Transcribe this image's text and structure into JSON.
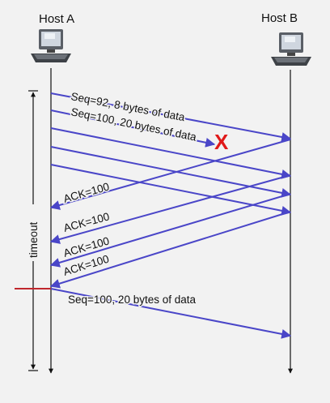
{
  "hosts": {
    "a": {
      "label": "Host A"
    },
    "b": {
      "label": "Host B"
    }
  },
  "timer": {
    "label": "timeout"
  },
  "messages": {
    "seq92": "Seq=92, 8 bytes of data",
    "seq100_first": "Seq=100, 20 bytes of data",
    "ack_1": "ACK=100",
    "ack_2": "ACK=100",
    "ack_3": "ACK=100",
    "ack_4": "ACK=100",
    "seq100_retx": "Seq=100, 20 bytes of data"
  },
  "loss_marker": {
    "glyph": "X",
    "meaning": "packet lost"
  },
  "colors": {
    "arrow": "#4a46c8",
    "loss": "#e01919",
    "timeout_marker": "#c0272d",
    "timeline": "#111111",
    "background": "#f2f2f2"
  }
}
